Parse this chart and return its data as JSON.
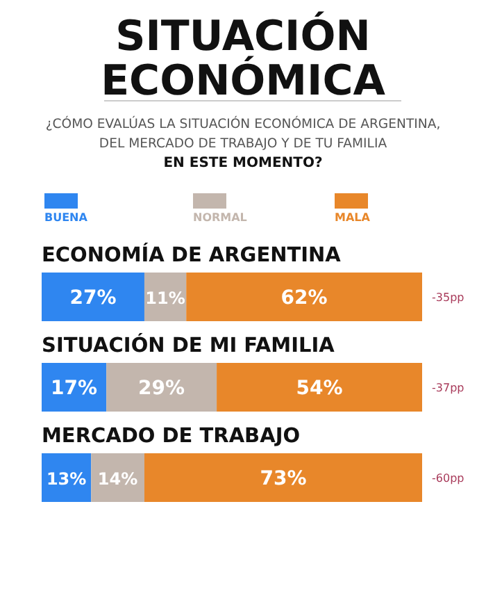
{
  "chart_data": {
    "type": "bar",
    "orientation": "horizontal",
    "stacked": true,
    "title": "SITUACIÓN\nECONÓMICA",
    "subtitle": "¿CÓMO EVALÚAS LA SITUACIÓN ECONÓMICA DE ARGENTINA,\nDEL MERCADO DE TRABAJO Y DE TU FAMILIA\nEN ESTE MOMENTO?",
    "categories": [
      "ECONOMÍA DE ARGENTINA",
      "SITUACIÓN DE MI FAMILIA",
      "MERCADO DE TRABAJO"
    ],
    "series": [
      {
        "name": "BUENA",
        "color": "#2f86f0",
        "values": [
          27,
          17,
          13
        ],
        "value_labels": [
          "27%",
          "17%",
          "13%"
        ]
      },
      {
        "name": "NORMAL",
        "color": "#c3b6ad",
        "values": [
          11,
          29,
          14
        ],
        "value_labels": [
          "11%",
          "29%",
          "14%"
        ]
      },
      {
        "name": "MALA",
        "color": "#e8872a",
        "values": [
          62,
          54,
          73
        ],
        "value_labels": [
          "62%",
          "54%",
          "73%"
        ]
      }
    ],
    "legend": "top",
    "annotations": [
      "-35pp",
      "-37pp",
      "-60pp"
    ]
  }
}
